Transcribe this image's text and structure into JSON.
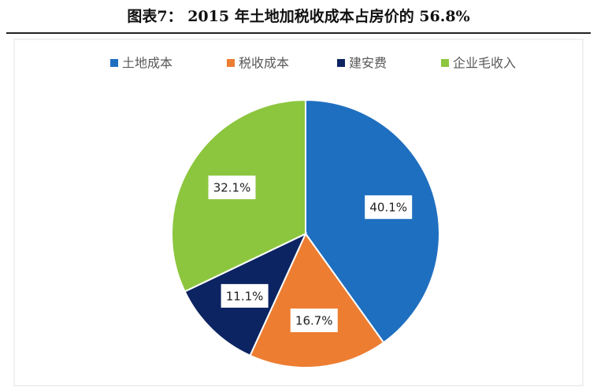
{
  "chart_data": {
    "type": "pie",
    "title": "图表7： 2015 年土地加税收成本占房价的 56.8%",
    "categories": [
      "土地成本",
      "税收成本",
      "建安费",
      "企业毛收入"
    ],
    "values": [
      40.1,
      16.7,
      11.1,
      32.1
    ],
    "value_labels": [
      "40.1%",
      "16.7%",
      "11.1%",
      "32.1%"
    ],
    "colors": [
      "#1f6fc0",
      "#ed7d31",
      "#0c2461",
      "#8cc63e"
    ],
    "legend": "top"
  }
}
